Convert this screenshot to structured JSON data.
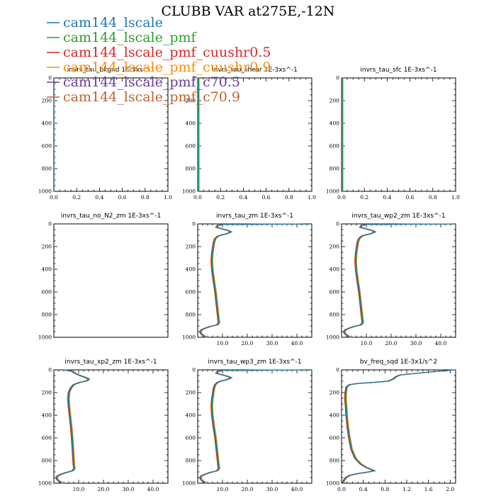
{
  "figure": {
    "title": "CLUBB VAR at275E,-12N"
  },
  "legend": [
    {
      "name": "cam144_lscale",
      "color": "#1f77b4"
    },
    {
      "name": "cam144_lscale_pmf",
      "color": "#2ca02c"
    },
    {
      "name": "cam144_lscale_pmf_cuushr0.5",
      "color": "#d62728"
    },
    {
      "name": "cam144_lscale_pmf_cuushr0.9",
      "color": "#ff8c00"
    },
    {
      "name": "cam144_lscale_pmf_c70.5",
      "color": "#6a3d9a"
    },
    {
      "name": "cam144_lscale_pmf_c70.9",
      "color": "#c0622f"
    }
  ],
  "chart_data": [
    {
      "type": "line",
      "title": "invrs_tau_bkgnd   1E-3xs^-1",
      "xlim": [
        0,
        1
      ],
      "ylim": [
        1000,
        0
      ],
      "xticks": [
        "0.0",
        "0.2",
        "0.4",
        "0.6",
        "0.8",
        "1.0"
      ],
      "yticks": [
        "0",
        "200",
        "400",
        "600",
        "800",
        "1000"
      ],
      "profile": {
        "p": [
          0,
          1000
        ],
        "x": [
          0,
          0
        ]
      }
    },
    {
      "type": "line",
      "title": "invrs_tau_shear   1E-3xs^-1",
      "xlim": [
        0,
        1
      ],
      "ylim": [
        1000,
        0
      ],
      "xticks": [
        "0.0",
        "0.2",
        "0.4",
        "0.6",
        "0.8",
        "1.0"
      ],
      "yticks": [
        "0",
        "200",
        "400",
        "600",
        "800",
        "1000"
      ],
      "profile": {
        "p": [
          0,
          1000
        ],
        "x": [
          0.003,
          0.003
        ]
      }
    },
    {
      "type": "line",
      "title": "invrs_tau_sfc   1E-3xs^-1",
      "xlim": [
        0,
        1
      ],
      "ylim": [
        1000,
        0
      ],
      "xticks": [
        "0.0",
        "0.2",
        "0.4",
        "0.6",
        "0.8",
        "1.0"
      ],
      "yticks": [
        "0",
        "200",
        "400",
        "600",
        "800",
        "1000"
      ],
      "profile": {
        "p": [
          0,
          1000
        ],
        "x": [
          0.003,
          0.003
        ]
      }
    },
    {
      "type": "line",
      "title": "invrs_tau_no_N2_zm   1E-3xs^-1",
      "xlim": [
        0,
        1
      ],
      "ylim": [
        1000,
        0
      ],
      "xticks": [],
      "yticks": [
        "0",
        "200",
        "400",
        "600",
        "800",
        "1000"
      ],
      "profile": null
    },
    {
      "type": "line",
      "title": "invrs_tau_zm   1E-3xs^-1",
      "xlim": [
        0,
        46
      ],
      "ylim": [
        1000,
        0
      ],
      "xticks": [
        "10.0",
        "20.0",
        "30.0",
        "40.0"
      ],
      "yticks": [
        "0",
        "200",
        "400",
        "600",
        "800",
        "1000"
      ],
      "profile": {
        "p": [
          0,
          5,
          15,
          30,
          45,
          60,
          70,
          80,
          90,
          100,
          110,
          130,
          160,
          200,
          260,
          320,
          400,
          500,
          600,
          700,
          780,
          840,
          870,
          890,
          905,
          920,
          935,
          950,
          965,
          980,
          995,
          1000
        ],
        "x": [
          46,
          10,
          8,
          7.5,
          10,
          12.5,
          13.4,
          12.5,
          11,
          9.2,
          8,
          7,
          6.5,
          6.2,
          5.8,
          5.6,
          5.8,
          6.4,
          7.1,
          7.6,
          8,
          8.3,
          8.5,
          7.8,
          5,
          3,
          1.5,
          1,
          1.2,
          2,
          3,
          3.5
        ]
      }
    },
    {
      "type": "line",
      "title": "invrs_tau_wp2_zm   1E-3xs^-1",
      "xlim": [
        0,
        46
      ],
      "ylim": [
        1000,
        0
      ],
      "xticks": [
        "10.0",
        "20.0",
        "30.0",
        "40.0"
      ],
      "yticks": [
        "0",
        "200",
        "400",
        "600",
        "800",
        "1000"
      ],
      "profile": {
        "p": [
          0,
          5,
          15,
          30,
          45,
          60,
          70,
          80,
          90,
          100,
          110,
          130,
          160,
          200,
          260,
          320,
          400,
          500,
          600,
          700,
          780,
          840,
          870,
          890,
          905,
          920,
          935,
          950,
          965,
          980,
          995,
          1000
        ],
        "x": [
          46,
          10,
          8,
          7.5,
          10,
          12.5,
          13.4,
          12.5,
          11,
          9.2,
          8,
          7,
          6.5,
          6.2,
          5.8,
          5.6,
          5.8,
          6.4,
          7.1,
          7.6,
          8,
          8.3,
          8.5,
          7.8,
          5,
          3,
          1.5,
          1,
          1.2,
          2,
          3,
          3.5
        ]
      }
    },
    {
      "type": "line",
      "title": "invrs_tau_xp2_zm   1E-3xs^-1",
      "xlim": [
        0,
        46
      ],
      "ylim": [
        1000,
        0
      ],
      "xticks": [
        "10.0",
        "20.0",
        "30.0",
        "40.0"
      ],
      "yticks": [
        "0",
        "200",
        "400",
        "600",
        "800",
        "1000"
      ],
      "profile": {
        "p": [
          0,
          10,
          30,
          50,
          65,
          80,
          95,
          110,
          130,
          160,
          200,
          260,
          320,
          400,
          500,
          600,
          700,
          780,
          840,
          870,
          890,
          905,
          920,
          935,
          950,
          965,
          980,
          995,
          1000
        ],
        "x": [
          4,
          7,
          8.5,
          10.5,
          12.5,
          14,
          13.5,
          10.5,
          8,
          6.8,
          6,
          5.8,
          6,
          6.4,
          6.9,
          7.3,
          7.6,
          7.8,
          8,
          8.2,
          7.5,
          5,
          3,
          1.5,
          1,
          1.2,
          2,
          3,
          3.5
        ]
      }
    },
    {
      "type": "line",
      "title": "invrs_tau_wp3_zm   1E-3xs^-1",
      "xlim": [
        0,
        46
      ],
      "ylim": [
        1000,
        0
      ],
      "xticks": [
        "10.0",
        "20.0",
        "30.0",
        "40.0"
      ],
      "yticks": [
        "0",
        "200",
        "400",
        "600",
        "800",
        "1000"
      ],
      "profile": {
        "p": [
          0,
          5,
          15,
          30,
          45,
          60,
          70,
          80,
          90,
          100,
          110,
          130,
          160,
          200,
          260,
          320,
          400,
          500,
          600,
          700,
          780,
          840,
          870,
          890,
          905,
          920,
          935,
          950,
          965,
          980,
          995,
          1000
        ],
        "x": [
          46,
          10,
          8,
          7.5,
          10,
          12.5,
          13.4,
          12.5,
          11,
          9.2,
          8,
          7,
          6.5,
          6.2,
          5.8,
          5.6,
          5.8,
          6.4,
          7.1,
          7.6,
          8,
          8.3,
          8.5,
          7.8,
          5,
          3,
          1.5,
          1,
          1.2,
          2,
          3,
          3.5
        ]
      }
    },
    {
      "type": "line",
      "title": "bv_freq_sqd   1E-3x1/s^2",
      "xlim": [
        0,
        2.1
      ],
      "ylim": [
        1000,
        0
      ],
      "xticks": [
        "0.0",
        "0.4",
        "0.8",
        "1.2",
        "1.6",
        "2.0"
      ],
      "yticks": [
        "0",
        "200",
        "400",
        "600",
        "800",
        "1000"
      ],
      "profile": {
        "p": [
          0,
          20,
          45,
          60,
          80,
          100,
          110,
          120,
          130,
          150,
          180,
          220,
          270,
          320,
          400,
          500,
          600,
          700,
          780,
          830,
          860,
          880,
          890,
          900,
          915,
          930,
          950,
          975,
          1000
        ],
        "x": [
          2.1,
          1.6,
          1.08,
          1.0,
          0.95,
          0.85,
          0.6,
          0.3,
          0.15,
          0.09,
          0.08,
          0.07,
          0.07,
          0.08,
          0.09,
          0.11,
          0.14,
          0.18,
          0.25,
          0.35,
          0.45,
          0.55,
          0.6,
          0.5,
          0.3,
          0.15,
          0.08,
          0.04,
          0.02
        ]
      }
    }
  ]
}
